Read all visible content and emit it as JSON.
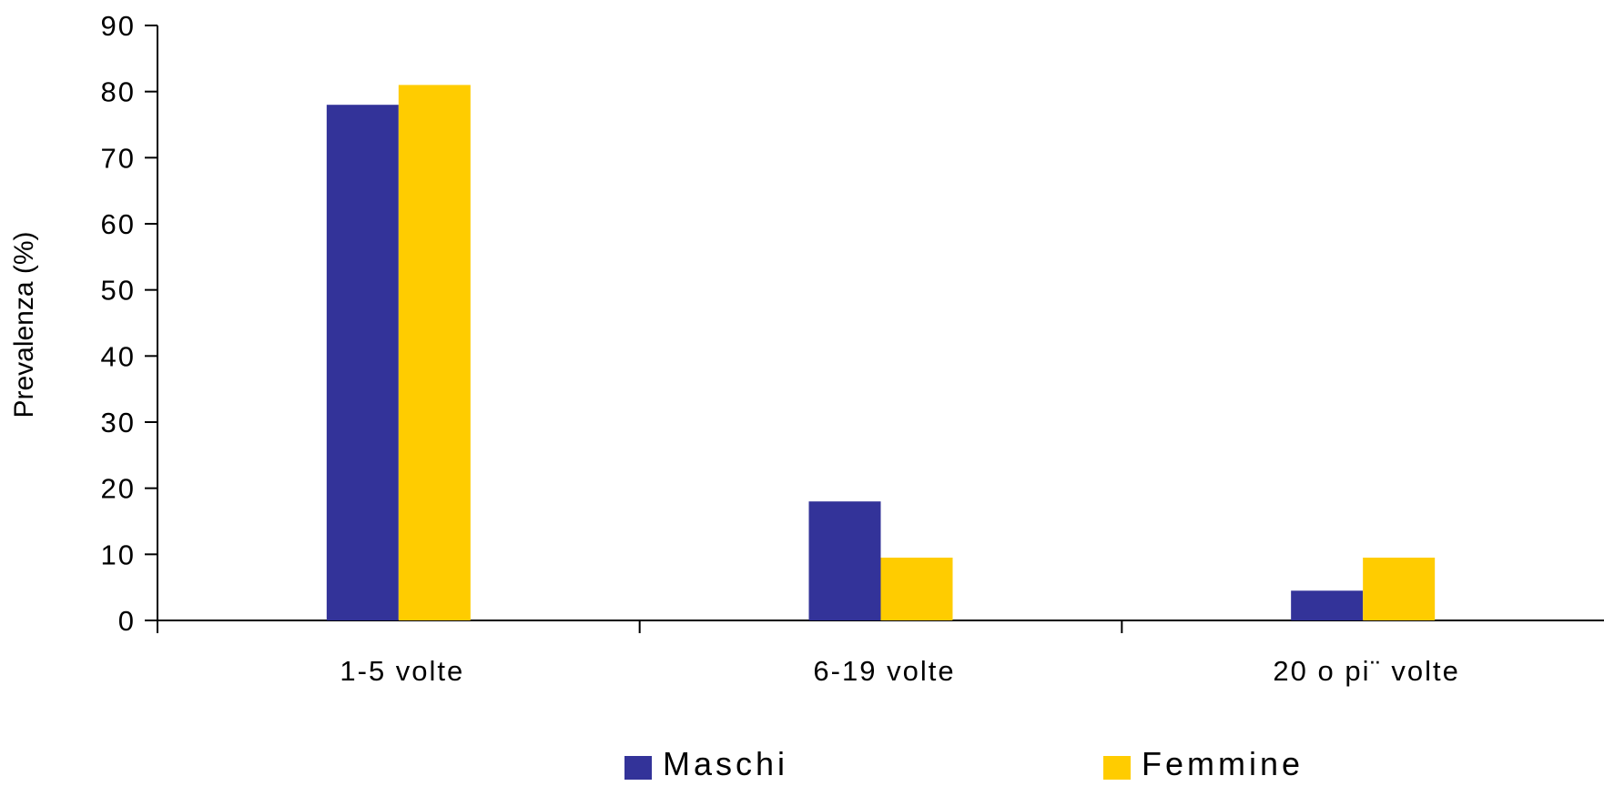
{
  "chart_data": {
    "type": "bar",
    "title": "",
    "xlabel": "",
    "ylabel": "Prevalenza (%)",
    "ylim": [
      0,
      90
    ],
    "yticks": [
      "0",
      "10",
      "20",
      "30",
      "40",
      "50",
      "60",
      "70",
      "80",
      "90"
    ],
    "categories": [
      "1-5 volte",
      "6-19 volte",
      "20 o pi¨ volte"
    ],
    "series": [
      {
        "name": "Maschi",
        "color": "#333399",
        "values": [
          78,
          18,
          4.5
        ]
      },
      {
        "name": "Femmine",
        "color": "#ffcc00",
        "values": [
          81,
          9.5,
          9.5
        ]
      }
    ],
    "grid": false,
    "legend": "bottom"
  }
}
